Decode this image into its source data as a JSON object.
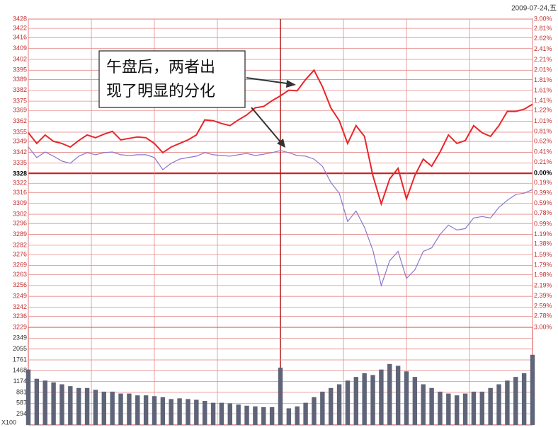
{
  "chart_data": [
    {
      "type": "line",
      "date": "2009-07-24,五",
      "annotation": [
        "午盘后，两者出",
        "现了明显的分化"
      ],
      "x": [
        0,
        4,
        8,
        12,
        16,
        20,
        24,
        28,
        32,
        36,
        40,
        44,
        48,
        52,
        56,
        60,
        64,
        68,
        72,
        76,
        80,
        84,
        88,
        92,
        96,
        100,
        104,
        108,
        112,
        116,
        120,
        124,
        128,
        132,
        136,
        140,
        144,
        148,
        152,
        156,
        160,
        164,
        168,
        172,
        176,
        180,
        184,
        188,
        192,
        196,
        200,
        204,
        208,
        212,
        216,
        220,
        224,
        228,
        232,
        236,
        240
      ],
      "xlim": [
        0,
        240
      ],
      "xticks": [
        0,
        30,
        60,
        90,
        120,
        150,
        180,
        210,
        240
      ],
      "series": [
        {
          "color": "#e8262a",
          "values": [
            3354.6,
            3347.7,
            3353.2,
            3349.1,
            3347.7,
            3345.4,
            3349.6,
            3353.2,
            3351.4,
            3353.7,
            3355.5,
            3350.0,
            3351.0,
            3351.9,
            3351.4,
            3347.7,
            3341.8,
            3345.4,
            3347.7,
            3350.0,
            3353.2,
            3362.9,
            3362.4,
            3360.6,
            3359.2,
            3362.9,
            3366.1,
            3370.7,
            3371.6,
            3375.3,
            3378.5,
            3382.1,
            3381.7,
            3389.0,
            3395.0,
            3384.4,
            3370.7,
            3362.4,
            3347.7,
            3359.2,
            3352.3,
            3327.1,
            3308.7,
            3324.8,
            3331.7,
            3311.9,
            3327.1,
            3337.6,
            3333.0,
            3342.2,
            3353.2,
            3347.7,
            3349.6,
            3359.2,
            3354.6,
            3352.3,
            3359.2,
            3368.4,
            3368.4,
            3369.8,
            3373.0
          ]
        },
        {
          "color": "#8a78cc",
          "values": [
            3345.4,
            3338.6,
            3342.2,
            3339.5,
            3336.3,
            3334.9,
            3339.5,
            3341.8,
            3340.4,
            3341.8,
            3342.2,
            3340.4,
            3339.9,
            3340.4,
            3340.4,
            3338.6,
            3330.8,
            3334.9,
            3337.6,
            3338.6,
            3339.5,
            3341.8,
            3340.4,
            3339.9,
            3339.5,
            3340.4,
            3341.3,
            3339.9,
            3340.8,
            3341.8,
            3343.1,
            3341.8,
            3339.9,
            3339.5,
            3337.6,
            3333.0,
            3322.5,
            3315.6,
            3297.3,
            3304.1,
            3293.6,
            3278.9,
            3256.0,
            3272.0,
            3278.0,
            3260.6,
            3266.1,
            3278.0,
            3280.3,
            3289.0,
            3295.0,
            3291.8,
            3292.7,
            3299.6,
            3300.5,
            3299.6,
            3306.4,
            3311.0,
            3314.7,
            3315.6,
            3317.9
          ]
        }
      ],
      "ylim": [
        3229,
        3428
      ],
      "yticks": [
        3428,
        3422,
        3416,
        3409,
        3402,
        3395,
        3389,
        3382,
        3375,
        3369,
        3362,
        3355,
        3349,
        3342,
        3335,
        3328,
        3322,
        3316,
        3309,
        3302,
        3296,
        3289,
        3282,
        3276,
        3269,
        3263,
        3256,
        3249,
        3242,
        3236,
        3229
      ],
      "y2lim": [
        -3,
        3
      ],
      "y2ticks": [
        {
          "value": 3,
          "label": "3.00%"
        },
        {
          "value": 2.81,
          "label": "2.81%"
        },
        {
          "value": 2.62,
          "label": "2.62%"
        },
        {
          "value": 2.41,
          "label": "2.41%"
        },
        {
          "value": 2.21,
          "label": "2.21%"
        },
        {
          "value": 2.01,
          "label": "2.01%"
        },
        {
          "value": 1.81,
          "label": "1.81%"
        },
        {
          "value": 1.61,
          "label": "1.61%"
        },
        {
          "value": 1.41,
          "label": "1.41%"
        },
        {
          "value": 1.22,
          "label": "1.22%"
        },
        {
          "value": 1.01,
          "label": "1.01%"
        },
        {
          "value": 0.81,
          "label": "0.81%"
        },
        {
          "value": 0.62,
          "label": "0.62%"
        },
        {
          "value": 0.41,
          "label": "0.41%"
        },
        {
          "value": 0.21,
          "label": "0.21%"
        },
        {
          "value": 0,
          "label": "0.00%"
        },
        {
          "value": -0.19,
          "label": "0.19%"
        },
        {
          "value": -0.39,
          "label": "0.39%"
        },
        {
          "value": -0.59,
          "label": "0.59%"
        },
        {
          "value": -0.78,
          "label": "0.78%"
        },
        {
          "value": -0.99,
          "label": "0.99%"
        },
        {
          "value": -1.19,
          "label": "1.19%"
        },
        {
          "value": -1.38,
          "label": "1.38%"
        },
        {
          "value": -1.59,
          "label": "1.59%"
        },
        {
          "value": -1.79,
          "label": "1.79%"
        },
        {
          "value": -1.98,
          "label": "1.98%"
        },
        {
          "value": -2.19,
          "label": "2.19%"
        },
        {
          "value": -2.39,
          "label": "2.39%"
        },
        {
          "value": -2.59,
          "label": "2.59%"
        },
        {
          "value": -2.78,
          "label": "2.78%"
        },
        {
          "value": -3,
          "label": "3.00%"
        }
      ],
      "grid": true
    },
    {
      "type": "bar",
      "unit": "X100",
      "x": [
        0,
        4,
        8,
        12,
        16,
        20,
        24,
        28,
        32,
        36,
        40,
        44,
        48,
        52,
        56,
        60,
        64,
        68,
        72,
        76,
        80,
        84,
        88,
        92,
        96,
        100,
        104,
        108,
        112,
        116,
        120,
        124,
        128,
        132,
        136,
        140,
        144,
        148,
        152,
        156,
        160,
        164,
        168,
        172,
        176,
        180,
        184,
        188,
        192,
        196,
        200,
        204,
        208,
        212,
        216,
        220,
        224,
        228,
        232,
        236,
        240
      ],
      "xlim": [
        0,
        240
      ],
      "values": [
        1500,
        1250,
        1200,
        1150,
        1100,
        1050,
        1000,
        1000,
        950,
        900,
        900,
        850,
        850,
        800,
        800,
        780,
        750,
        700,
        720,
        700,
        680,
        650,
        600,
        600,
        580,
        550,
        520,
        500,
        480,
        480,
        1550,
        450,
        500,
        600,
        750,
        900,
        1000,
        1100,
        1200,
        1300,
        1400,
        1350,
        1500,
        1650,
        1600,
        1450,
        1300,
        1100,
        1000,
        900,
        850,
        800,
        850,
        900,
        900,
        1000,
        1100,
        1200,
        1300,
        1400,
        1900
      ],
      "color": "#5f6478",
      "ylim": [
        0,
        2643
      ],
      "yticks": [
        2349,
        2055,
        1761,
        1468,
        1174,
        881,
        587,
        294
      ],
      "grid": true
    }
  ]
}
